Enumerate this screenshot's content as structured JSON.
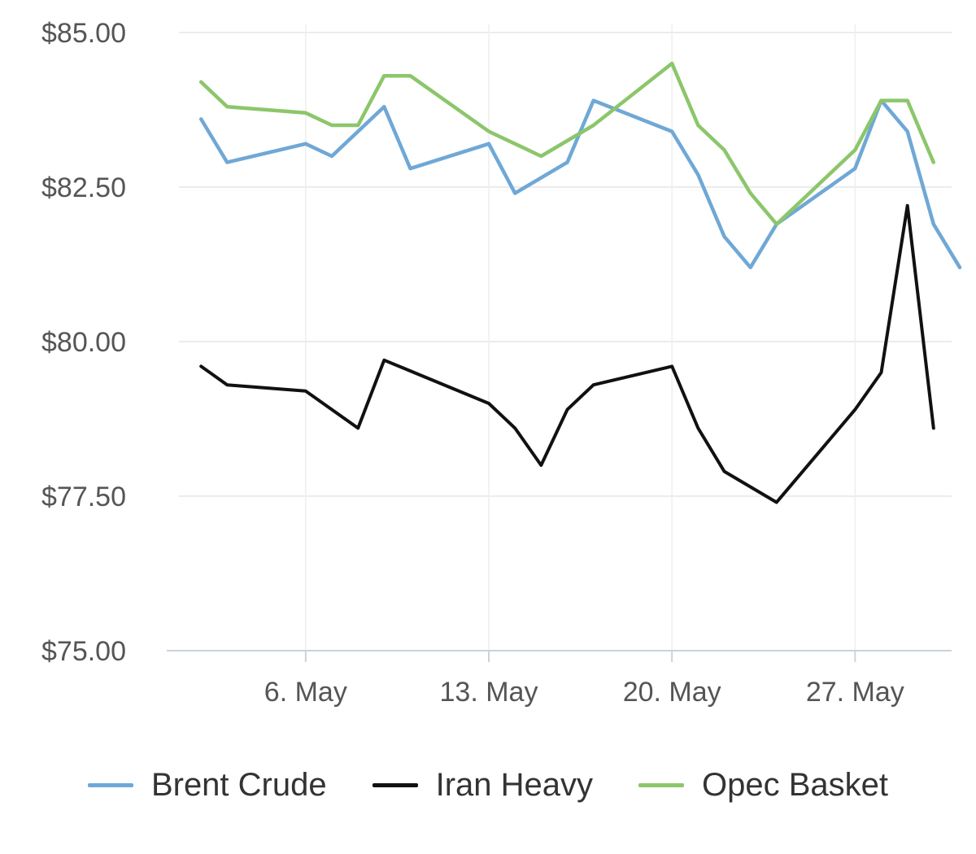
{
  "chart_data": {
    "type": "line",
    "title": "",
    "xlabel": "",
    "ylabel": "",
    "ylim": [
      75,
      85
    ],
    "xlim": [
      "2024-05-01",
      "2024-05-31"
    ],
    "yticks": [
      {
        "value": 75,
        "label": "$75.00"
      },
      {
        "value": 77.5,
        "label": "$77.50"
      },
      {
        "value": 80,
        "label": "$80.00"
      },
      {
        "value": 82.5,
        "label": "$82.50"
      },
      {
        "value": 85,
        "label": "$85.00"
      }
    ],
    "xticks": [
      {
        "date": "2024-05-06",
        "label": "6. May"
      },
      {
        "date": "2024-05-13",
        "label": "13. May"
      },
      {
        "date": "2024-05-20",
        "label": "20. May"
      },
      {
        "date": "2024-05-27",
        "label": "27. May"
      }
    ],
    "grid": true,
    "legend_position": "bottom",
    "series": [
      {
        "name": "Brent Crude",
        "color": "#6fa8d6",
        "points": [
          [
            "2024-05-02",
            83.6
          ],
          [
            "2024-05-03",
            82.9
          ],
          [
            "2024-05-06",
            83.2
          ],
          [
            "2024-05-07",
            83.0
          ],
          [
            "2024-05-09",
            83.8
          ],
          [
            "2024-05-10",
            82.8
          ],
          [
            "2024-05-13",
            83.2
          ],
          [
            "2024-05-14",
            82.4
          ],
          [
            "2024-05-16",
            82.9
          ],
          [
            "2024-05-17",
            83.9
          ],
          [
            "2024-05-20",
            83.4
          ],
          [
            "2024-05-21",
            82.7
          ],
          [
            "2024-05-22",
            81.7
          ],
          [
            "2024-05-23",
            81.2
          ],
          [
            "2024-05-24",
            81.9
          ],
          [
            "2024-05-27",
            82.8
          ],
          [
            "2024-05-28",
            83.9
          ],
          [
            "2024-05-29",
            83.4
          ],
          [
            "2024-05-30",
            81.9
          ],
          [
            "2024-05-31",
            81.2
          ]
        ]
      },
      {
        "name": "Iran Heavy",
        "color": "#111111",
        "points": [
          [
            "2024-05-02",
            79.6
          ],
          [
            "2024-05-03",
            79.3
          ],
          [
            "2024-05-06",
            79.2
          ],
          [
            "2024-05-08",
            78.6
          ],
          [
            "2024-05-09",
            79.7
          ],
          [
            "2024-05-13",
            79.0
          ],
          [
            "2024-05-14",
            78.6
          ],
          [
            "2024-05-15",
            78.0
          ],
          [
            "2024-05-16",
            78.9
          ],
          [
            "2024-05-17",
            79.3
          ],
          [
            "2024-05-20",
            79.6
          ],
          [
            "2024-05-21",
            78.6
          ],
          [
            "2024-05-22",
            77.9
          ],
          [
            "2024-05-24",
            77.4
          ],
          [
            "2024-05-27",
            78.9
          ],
          [
            "2024-05-28",
            79.5
          ],
          [
            "2024-05-29",
            82.2
          ],
          [
            "2024-05-30",
            78.6
          ]
        ]
      },
      {
        "name": "Opec Basket",
        "color": "#8cc66b",
        "points": [
          [
            "2024-05-02",
            84.2
          ],
          [
            "2024-05-03",
            83.8
          ],
          [
            "2024-05-06",
            83.7
          ],
          [
            "2024-05-07",
            83.5
          ],
          [
            "2024-05-08",
            83.5
          ],
          [
            "2024-05-09",
            84.3
          ],
          [
            "2024-05-10",
            84.3
          ],
          [
            "2024-05-13",
            83.4
          ],
          [
            "2024-05-14",
            83.2
          ],
          [
            "2024-05-15",
            83.0
          ],
          [
            "2024-05-17",
            83.5
          ],
          [
            "2024-05-20",
            84.5
          ],
          [
            "2024-05-21",
            83.5
          ],
          [
            "2024-05-22",
            83.1
          ],
          [
            "2024-05-23",
            82.4
          ],
          [
            "2024-05-24",
            81.9
          ],
          [
            "2024-05-27",
            83.1
          ],
          [
            "2024-05-28",
            83.9
          ],
          [
            "2024-05-29",
            83.9
          ],
          [
            "2024-05-30",
            82.9
          ]
        ]
      }
    ]
  }
}
